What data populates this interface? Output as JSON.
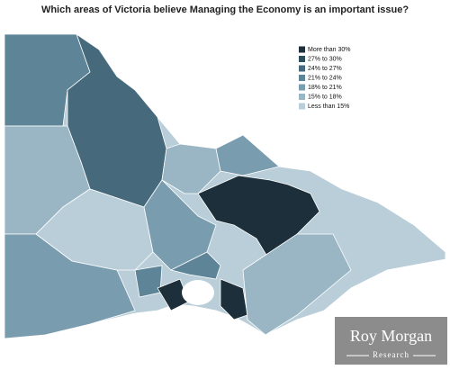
{
  "title": "Which areas of Victoria believe Managing the Economy is an important issue?",
  "legend": {
    "items": [
      {
        "label": "More than 30%",
        "color": "#1d2f3a"
      },
      {
        "label": "27% to 30%",
        "color": "#2e4d5d"
      },
      {
        "label": "24% to 27%",
        "color": "#46697c"
      },
      {
        "label": "21% to 24%",
        "color": "#5d8497"
      },
      {
        "label": "18% to 21%",
        "color": "#7a9caf"
      },
      {
        "label": "15% to 18%",
        "color": "#9ab6c4"
      },
      {
        "label": "Less than 15%",
        "color": "#b9ced8"
      }
    ]
  },
  "watermark": {
    "name": "Roy Morgan",
    "subtitle": "Research"
  }
}
